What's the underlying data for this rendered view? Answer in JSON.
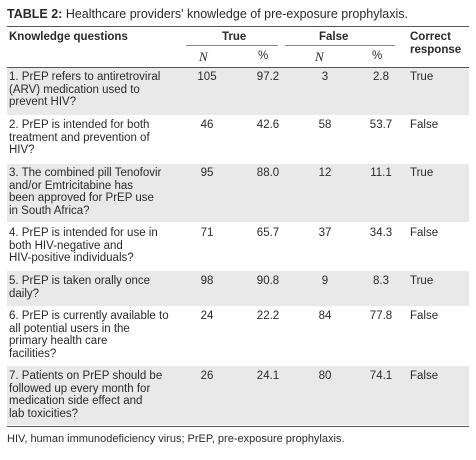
{
  "caption": {
    "label": "TABLE 2:",
    "text": "Healthcare providers' knowledge of pre-exposure prophylaxis."
  },
  "headers": {
    "question": "Knowledge questions",
    "true": "True",
    "false": "False",
    "correct": "Correct\nresponse",
    "n": "N",
    "pct": "%"
  },
  "rows": [
    {
      "q": "1. PrEP refers to antiretroviral\n(ARV) medication used to\nprevent HIV?",
      "true_n": "105",
      "true_pct": "97.2",
      "false_n": "3",
      "false_pct": "2.8",
      "correct": "True"
    },
    {
      "q": "2. PrEP is intended for both\ntreatment and prevention of\nHIV?",
      "true_n": "46",
      "true_pct": "42.6",
      "false_n": "58",
      "false_pct": "53.7",
      "correct": "False"
    },
    {
      "q": "3. The combined pill Tenofovir\nand/or Emtricitabine has\nbeen approved for PrEP use\nin South Africa?",
      "true_n": "95",
      "true_pct": "88.0",
      "false_n": "12",
      "false_pct": "11.1",
      "correct": "True"
    },
    {
      "q": "4. PrEP is intended for use in\nboth HIV-negative and\nHIV-positive individuals?",
      "true_n": "71",
      "true_pct": "65.7",
      "false_n": "37",
      "false_pct": "34.3",
      "correct": "False"
    },
    {
      "q": "5. PrEP is taken orally once\ndaily?",
      "true_n": "98",
      "true_pct": "90.8",
      "false_n": "9",
      "false_pct": "8.3",
      "correct": "True"
    },
    {
      "q": "6. PrEP is currently available to\nall potential users in the\nprimary health care\nfacilities?",
      "true_n": "24",
      "true_pct": "22.2",
      "false_n": "84",
      "false_pct": "77.8",
      "correct": "False"
    },
    {
      "q": "7. Patients on PrEP should be\nfollowed up every month for\nmedication side effect and\nlab toxicities?",
      "true_n": "26",
      "true_pct": "24.1",
      "false_n": "80",
      "false_pct": "74.1",
      "correct": "False"
    }
  ],
  "footnote": "HIV, human immunodeficiency virus; PrEP, pre-exposure prophylaxis."
}
